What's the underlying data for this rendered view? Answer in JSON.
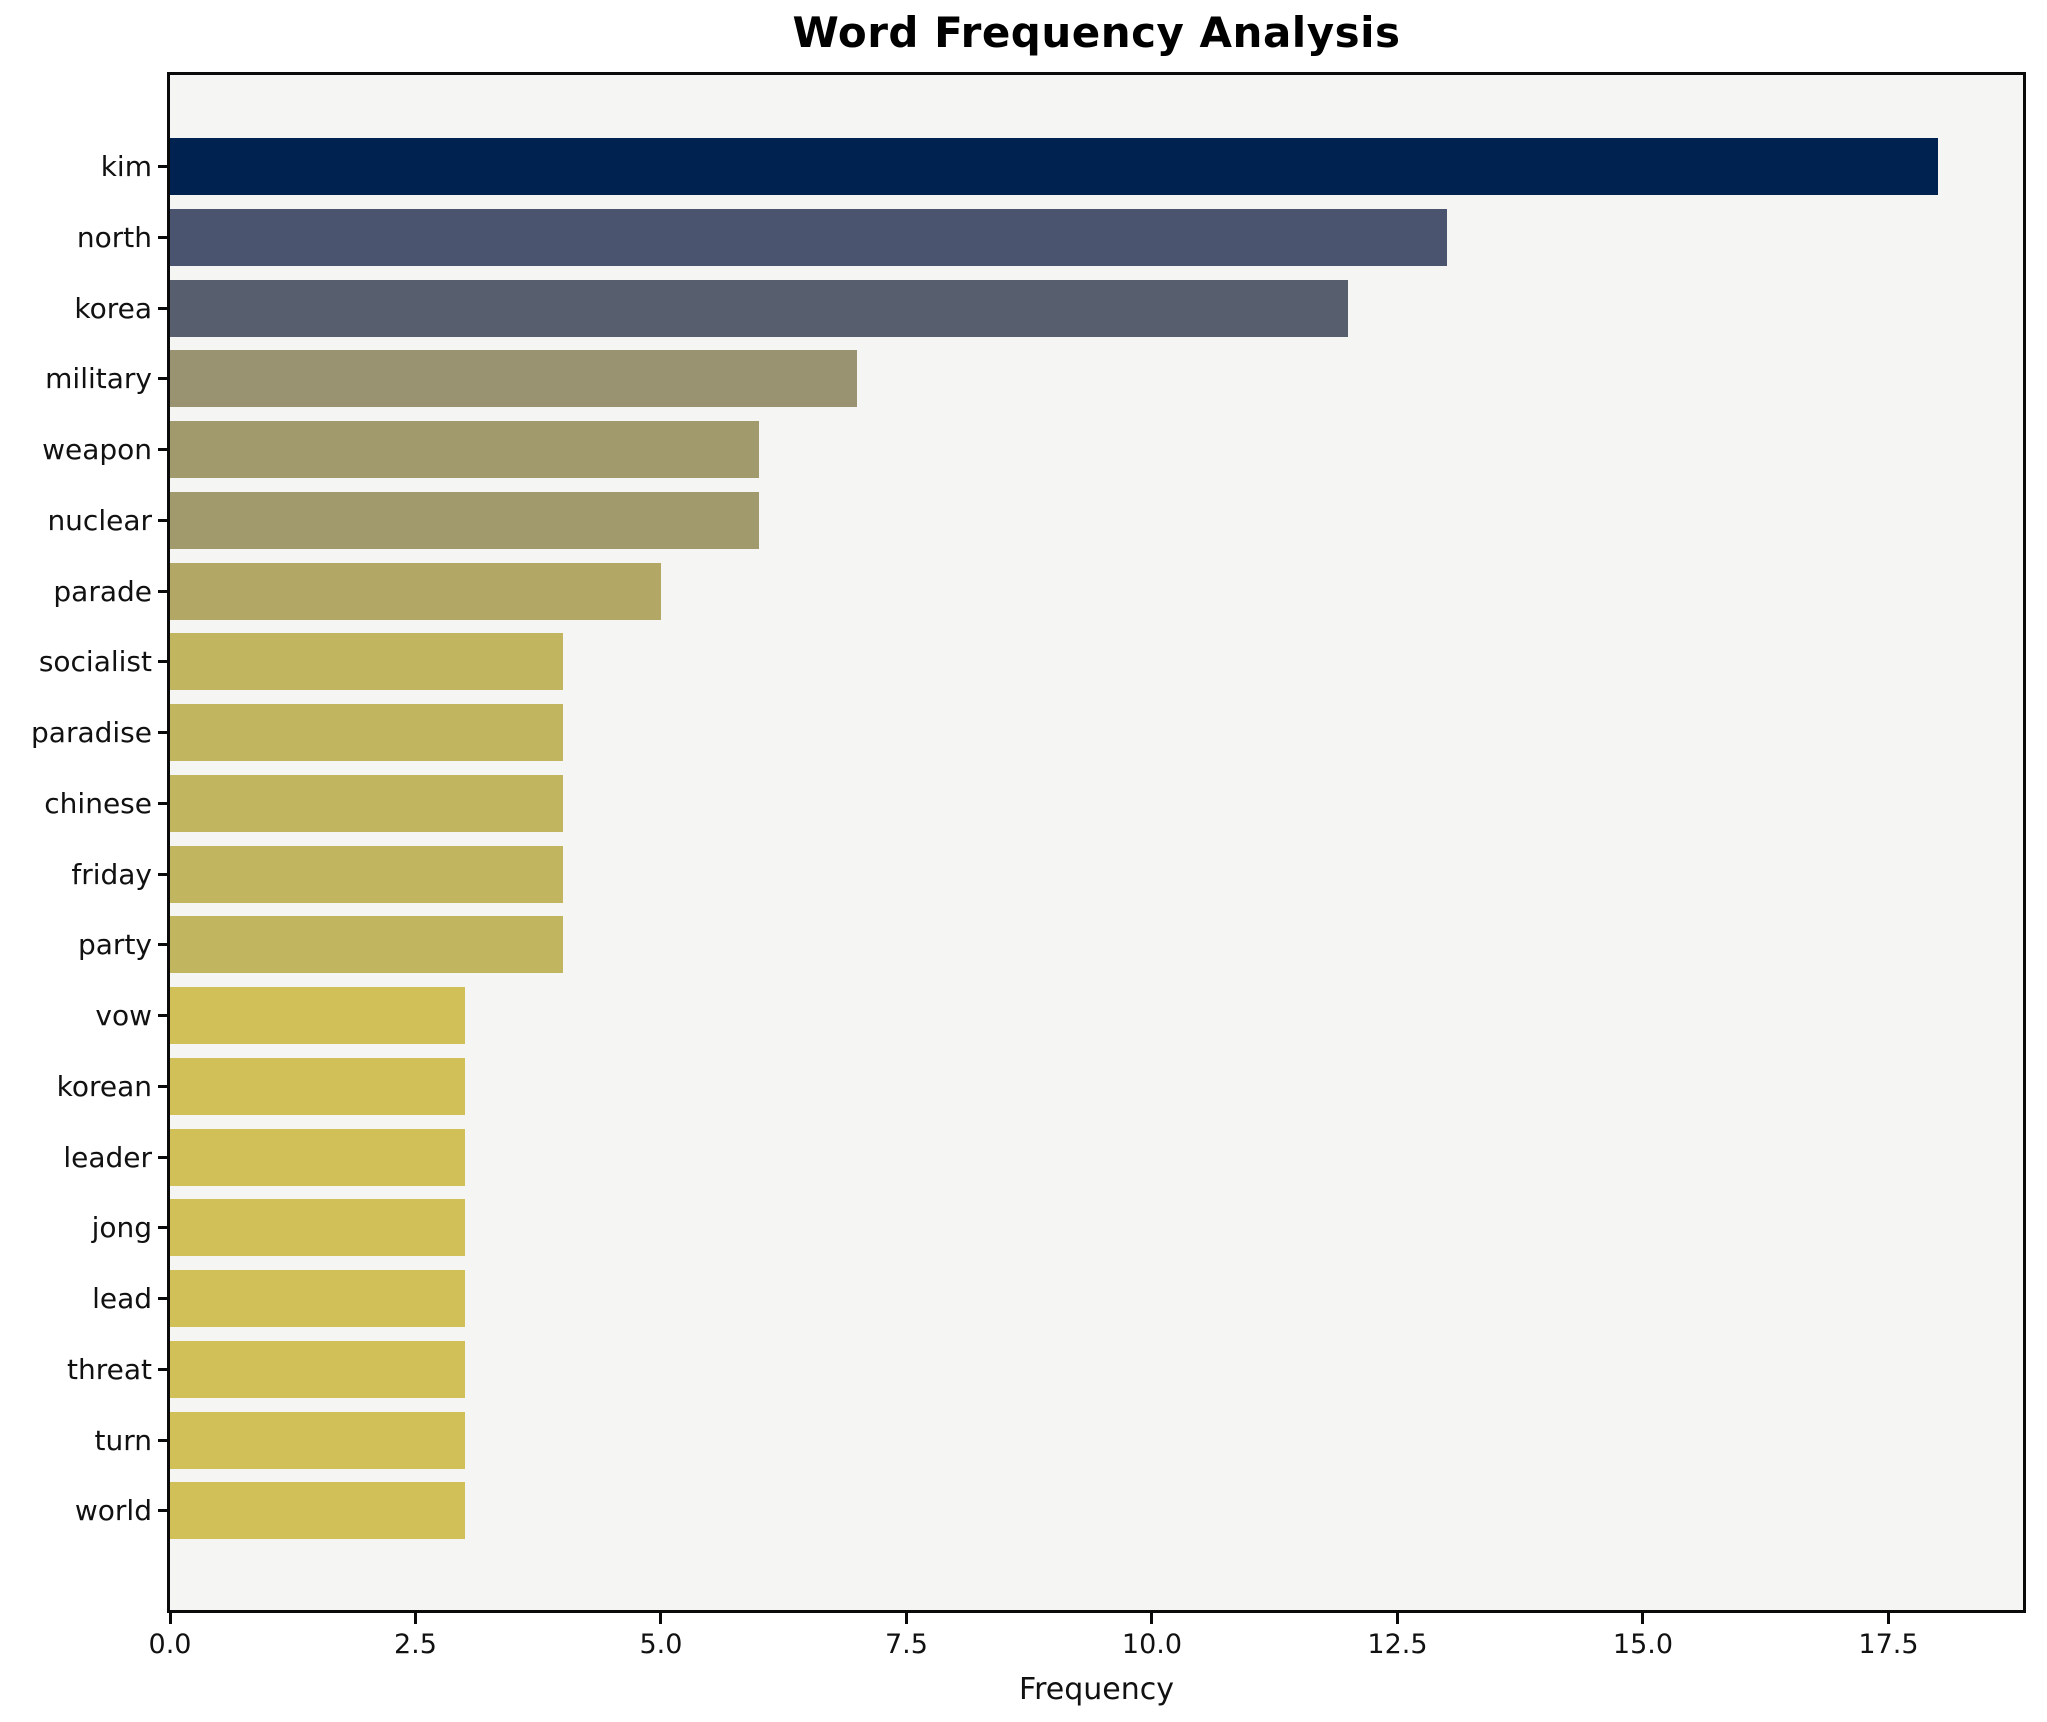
{
  "chart_data": {
    "type": "bar",
    "orientation": "horizontal",
    "title": "Word Frequency Analysis",
    "xlabel": "Frequency",
    "ylabel": "",
    "categories": [
      "kim",
      "north",
      "korea",
      "military",
      "weapon",
      "nuclear",
      "parade",
      "socialist",
      "paradise",
      "chinese",
      "friday",
      "party",
      "vow",
      "korean",
      "leader",
      "jong",
      "lead",
      "threat",
      "turn",
      "world"
    ],
    "values": [
      18,
      13,
      12,
      7,
      6,
      6,
      5,
      4,
      4,
      4,
      4,
      4,
      3,
      3,
      3,
      3,
      3,
      3,
      3,
      3
    ],
    "bar_colors": [
      "#002250",
      "#4A546E",
      "#575E6E",
      "#999371",
      "#A09A6C",
      "#A09A6C",
      "#B2A765",
      "#C2B55F",
      "#C2B55F",
      "#C2B55F",
      "#C2B55F",
      "#C2B55F",
      "#D1C058",
      "#D1C058",
      "#D1C058",
      "#D1C058",
      "#D1C058",
      "#D1C058",
      "#D1C058",
      "#D1C058"
    ],
    "xlim": [
      0,
      18.87
    ],
    "x_ticks": [
      0,
      2.5,
      5,
      7.5,
      10,
      12.5,
      15,
      17.5
    ],
    "x_tick_labels": [
      "0.0",
      "2.5",
      "5.0",
      "7.5",
      "10.0",
      "12.5",
      "15.0",
      "17.5"
    ],
    "grid": false,
    "legend": false,
    "plot_bg": "#F5F5F3",
    "fig_bg": "#FFFFFF",
    "colormap": "cividis-reversed-by-value"
  }
}
